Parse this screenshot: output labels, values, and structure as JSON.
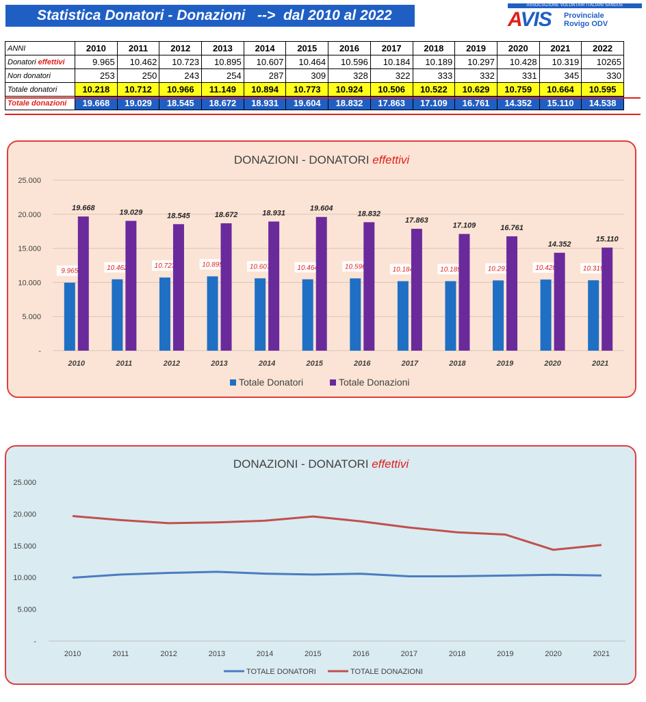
{
  "header": {
    "title": "Statistica Donatori - Donazioni   -->  dal 2010 al 2022",
    "logo_tagline": "ASSOCIAZIONE VOLONTARI ITALIANI SANGUE",
    "logo_mark_a": "A",
    "logo_mark_rest": "VIS",
    "logo_sub1": "Provinciale",
    "logo_sub2": "Rovigo ODV"
  },
  "table": {
    "years_label": "ANNI",
    "years": [
      "2010",
      "2011",
      "2012",
      "2013",
      "2014",
      "2015",
      "2016",
      "2017",
      "2018",
      "2019",
      "2020",
      "2021",
      "2022"
    ],
    "donatori_label": "Donatori ",
    "donatori_label_em": "effettivi",
    "donatori": [
      "9.965",
      "10.462",
      "10.723",
      "10.895",
      "10.607",
      "10.464",
      "10.596",
      "10.184",
      "10.189",
      "10.297",
      "10.428",
      "10.319",
      "10265"
    ],
    "non_donatori_label": "Non donatori",
    "non_donatori": [
      "253",
      "250",
      "243",
      "254",
      "287",
      "309",
      "328",
      "322",
      "333",
      "332",
      "331",
      "345",
      "330"
    ],
    "totale_donatori_label": "Totale   donatori",
    "totale_donatori": [
      "10.218",
      "10.712",
      "10.966",
      "11.149",
      "10.894",
      "10.773",
      "10.924",
      "10.506",
      "10.522",
      "10.629",
      "10.759",
      "10.664",
      "10.595"
    ],
    "totale_donazioni_label": "Totale  donazioni",
    "totale_donazioni": [
      "19.668",
      "19.029",
      "18.545",
      "18.672",
      "18.931",
      "19.604",
      "18.832",
      "17.863",
      "17.109",
      "16.761",
      "14.352",
      "15.110",
      "14.538"
    ]
  },
  "chart_data": [
    {
      "type": "bar",
      "title": "DONAZIONI - DONATORI ",
      "title_em": "effettivi",
      "categories": [
        "2010",
        "2011",
        "2012",
        "2013",
        "2014",
        "2015",
        "2016",
        "2017",
        "2018",
        "2019",
        "2020",
        "2021"
      ],
      "series": [
        {
          "name": "Totale Donatori",
          "color": "#1f6fc4",
          "values": [
            9965,
            10462,
            10723,
            10895,
            10607,
            10464,
            10596,
            10184,
            10189,
            10297,
            10428,
            10319
          ],
          "labels": [
            "9.965",
            "10.462",
            "10.723",
            "10.895",
            "10.607",
            "10.464",
            "10.596",
            "10.184",
            "10.189",
            "10.297",
            "10.428",
            "10.319"
          ]
        },
        {
          "name": "Totale Donazioni",
          "color": "#6a2a9c",
          "values": [
            19668,
            19029,
            18545,
            18672,
            18931,
            19604,
            18832,
            17863,
            17109,
            16761,
            14352,
            15110
          ],
          "labels": [
            "19.668",
            "19.029",
            "18.545",
            "18.672",
            "18.931",
            "19.604",
            "18.832",
            "17.863",
            "17.109",
            "16.761",
            "14.352",
            "15.110"
          ]
        }
      ],
      "yticks": [
        "-",
        "5.000",
        "10.000",
        "15.000",
        "20.000",
        "25.000"
      ],
      "ylim": [
        0,
        25000
      ],
      "legend": "bottom",
      "grid": true
    },
    {
      "type": "line",
      "title": "DONAZIONI - DONATORI  ",
      "title_em": "effettivi",
      "categories": [
        "2010",
        "2011",
        "2012",
        "2013",
        "2014",
        "2015",
        "2016",
        "2017",
        "2018",
        "2019",
        "2020",
        "2021"
      ],
      "series": [
        {
          "name": "TOTALE DONATORI",
          "color": "#4a7cc0",
          "values": [
            9965,
            10462,
            10723,
            10895,
            10607,
            10464,
            10596,
            10184,
            10189,
            10297,
            10428,
            10319
          ]
        },
        {
          "name": "TOTALE DONAZIONI",
          "color": "#c0504d",
          "values": [
            19668,
            19029,
            18545,
            18672,
            18931,
            19604,
            18832,
            17863,
            17109,
            16761,
            14352,
            15110
          ]
        }
      ],
      "yticks": [
        "-",
        "5.000",
        "10.000",
        "15.000",
        "20.000",
        "25.000"
      ],
      "ylim": [
        0,
        25000
      ],
      "legend": "bottom",
      "grid": false
    }
  ]
}
